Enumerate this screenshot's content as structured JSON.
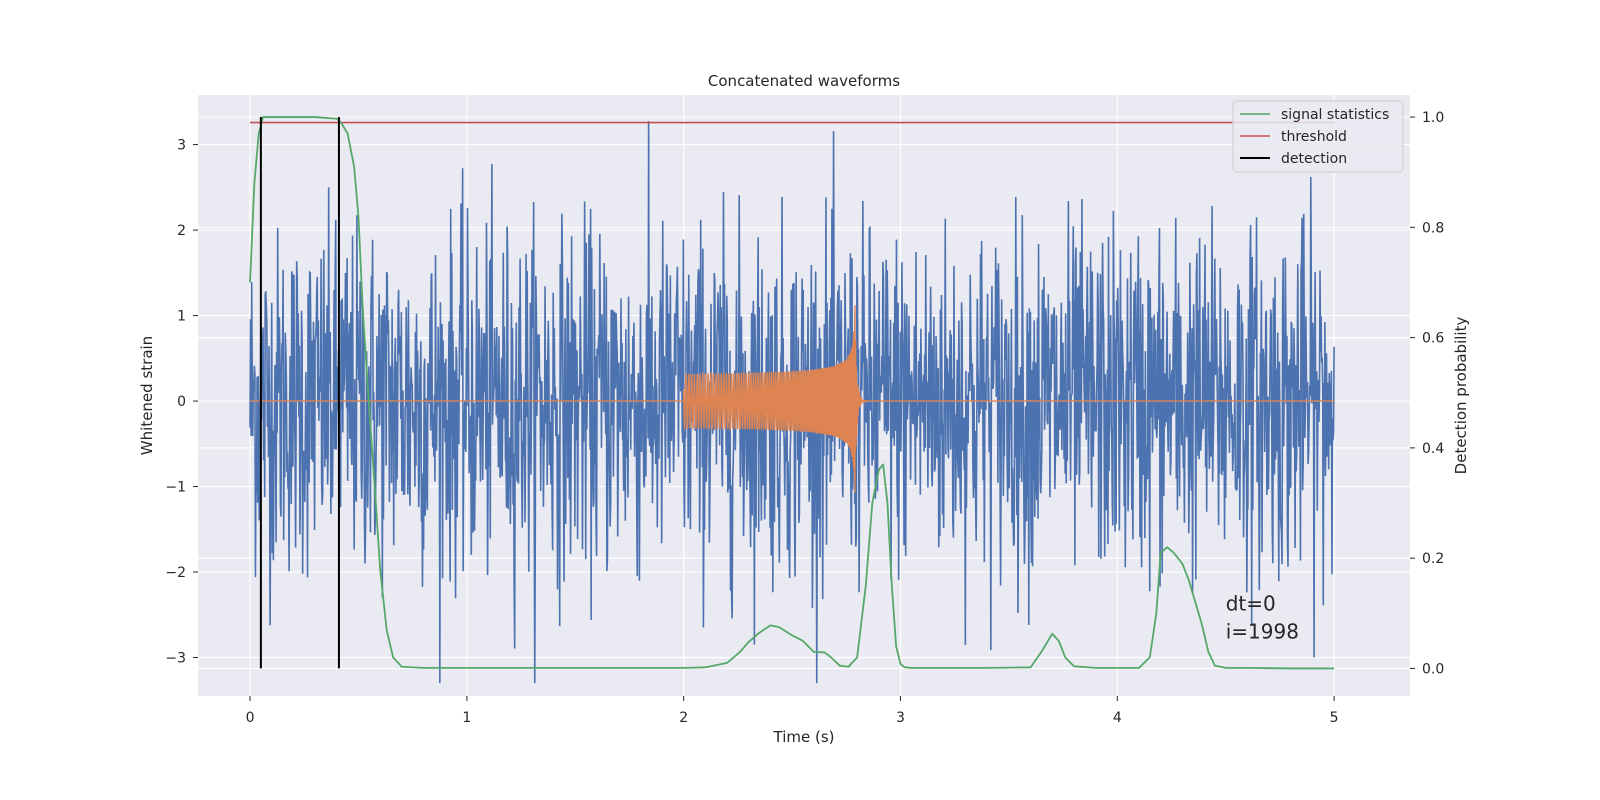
{
  "chart_data": {
    "type": "line",
    "title": "Concatenated waveforms",
    "xlabel": "Time (s)",
    "ylabel_left": "Whitened strain",
    "ylabel_right": "Detection probability",
    "xlim": [
      -0.24,
      5.35
    ],
    "ylim_left": [
      -3.45,
      3.58
    ],
    "ylim_right": [
      -0.05,
      1.04
    ],
    "x_ticks": [
      0,
      1,
      2,
      3,
      4,
      5
    ],
    "y_ticks_left": [
      -3,
      -2,
      -1,
      0,
      1,
      2,
      3
    ],
    "y_ticks_right": [
      0.0,
      0.2,
      0.4,
      0.6,
      0.8,
      1.0
    ],
    "y_tick_labels_left": [
      "−3",
      "−2",
      "−1",
      "0",
      "1",
      "2",
      "3"
    ],
    "y_tick_labels_right": [
      "0.0",
      "0.2",
      "0.4",
      "0.6",
      "0.8",
      "1.0"
    ],
    "grid": true,
    "legend_position": "top-right",
    "colors": {
      "background": "#eaeaf2",
      "grid": "#ffffff",
      "strain": "#4c72b0",
      "signal": "#dd8452",
      "statistics": "#55a868",
      "threshold": "#c44e52",
      "detection": "#000000"
    },
    "noise": {
      "name": "whitened strain",
      "x_range": [
        0,
        5
      ],
      "n_samples": 2000,
      "amplitude_std": 1.0,
      "max_abs": 3.3
    },
    "signal": {
      "name": "injected chirp",
      "x_range": [
        2.0,
        2.79
      ],
      "start_amplitude": 0.27,
      "peak_amplitude": 1.12,
      "peak_x": 2.79,
      "ringdown_end_x": 3.0
    },
    "series": [
      {
        "name": "signal statistics",
        "axis": "right",
        "x": [
          0.0,
          0.02,
          0.04,
          0.06,
          0.1,
          0.2,
          0.3,
          0.4,
          0.42,
          0.45,
          0.48,
          0.5,
          0.52,
          0.55,
          0.58,
          0.6,
          0.63,
          0.66,
          0.7,
          0.8,
          1.0,
          1.5,
          2.0,
          2.1,
          2.2,
          2.26,
          2.3,
          2.35,
          2.4,
          2.44,
          2.5,
          2.55,
          2.6,
          2.65,
          2.68,
          2.72,
          2.76,
          2.8,
          2.84,
          2.87,
          2.9,
          2.92,
          2.94,
          2.96,
          2.98,
          3.0,
          3.02,
          3.05,
          3.2,
          3.4,
          3.6,
          3.65,
          3.7,
          3.73,
          3.76,
          3.8,
          3.9,
          4.0,
          4.1,
          4.15,
          4.18,
          4.2,
          4.23,
          4.26,
          4.3,
          4.33,
          4.36,
          4.39,
          4.42,
          4.45,
          4.5,
          4.6,
          4.8,
          5.0
        ],
        "y": [
          0.7,
          0.88,
          0.97,
          1.0,
          1.0,
          1.0,
          1.0,
          0.997,
          0.99,
          0.97,
          0.91,
          0.82,
          0.65,
          0.47,
          0.3,
          0.18,
          0.07,
          0.02,
          0.003,
          0.001,
          0.001,
          0.001,
          0.001,
          0.002,
          0.01,
          0.03,
          0.048,
          0.065,
          0.078,
          0.075,
          0.06,
          0.05,
          0.03,
          0.029,
          0.02,
          0.005,
          0.003,
          0.02,
          0.15,
          0.3,
          0.36,
          0.37,
          0.3,
          0.15,
          0.04,
          0.008,
          0.002,
          0.001,
          0.001,
          0.001,
          0.002,
          0.03,
          0.063,
          0.05,
          0.02,
          0.004,
          0.001,
          0.001,
          0.001,
          0.02,
          0.1,
          0.21,
          0.22,
          0.21,
          0.19,
          0.16,
          0.12,
          0.08,
          0.03,
          0.005,
          0.001,
          0.001,
          0.0,
          0.0
        ]
      },
      {
        "name": "threshold",
        "axis": "right",
        "x": [
          0,
          5
        ],
        "y": [
          0.99,
          0.99
        ]
      }
    ],
    "detections": {
      "name": "detection",
      "x": [
        0.05,
        0.41
      ]
    },
    "annotations": [
      {
        "text": "dt=0",
        "x": 4.5,
        "y": -2.45
      },
      {
        "text": "i=1998",
        "x": 4.5,
        "y": -2.78
      }
    ]
  }
}
